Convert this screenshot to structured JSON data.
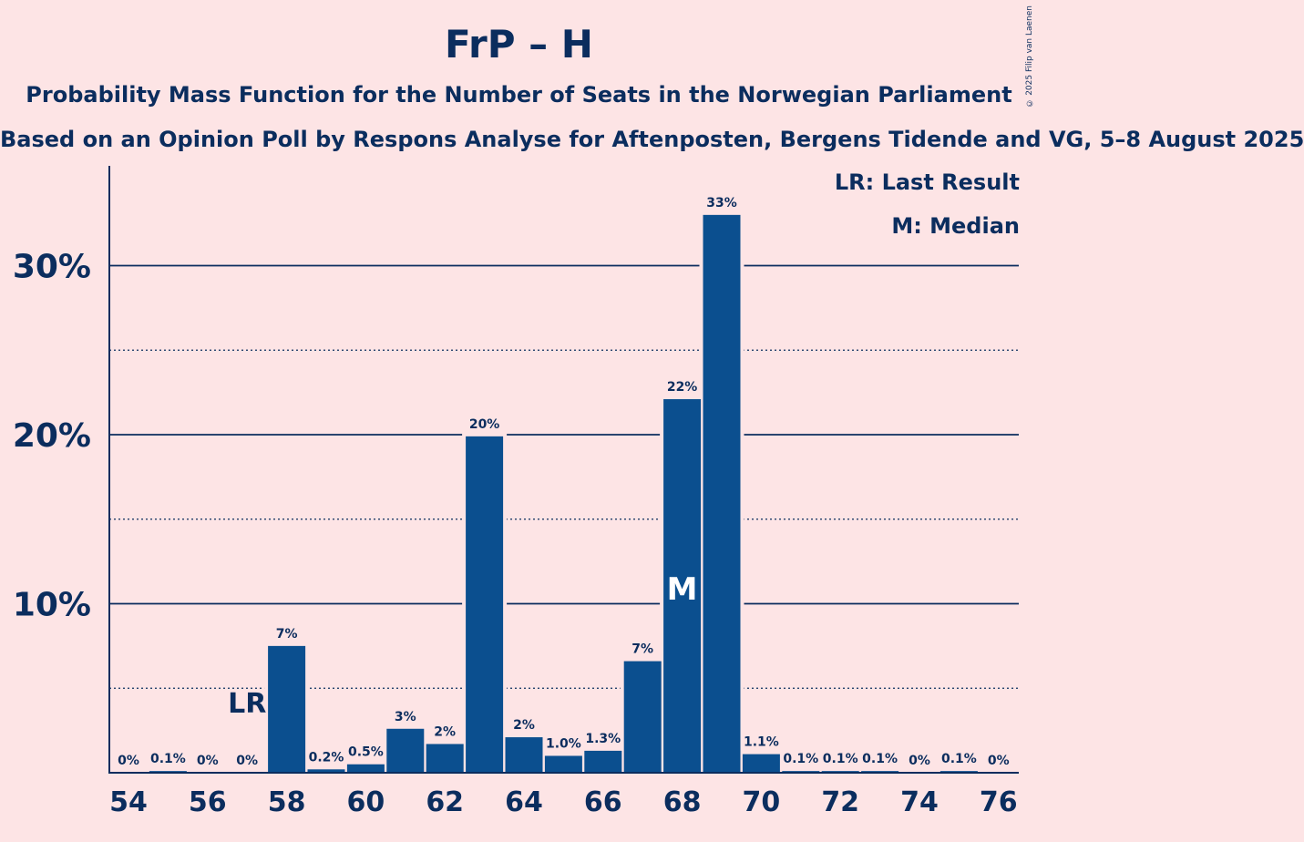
{
  "chart_data": {
    "type": "bar",
    "title": "FrP – H",
    "subtitle": "Probability Mass Function for the Number of Seats in the Norwegian Parliament",
    "subsubtitle": "Based on an Opinion Poll by Respons Analyse for Aftenposten, Bergens Tidende and VG, 5–8 August 2025",
    "copyright": "© 2025 Filip van Laenen",
    "legend": {
      "last_result": "LR: Last Result",
      "median": "M: Median"
    },
    "x": [
      54,
      55,
      56,
      57,
      58,
      59,
      60,
      61,
      62,
      63,
      64,
      65,
      66,
      67,
      68,
      69,
      70,
      71,
      72,
      73,
      74,
      75,
      76
    ],
    "values": [
      0,
      0.1,
      0,
      0,
      7.5,
      0.2,
      0.5,
      2.6,
      1.7,
      19.9,
      2.1,
      1.0,
      1.3,
      6.6,
      22.1,
      33.0,
      1.1,
      0.1,
      0.1,
      0.1,
      0,
      0.1,
      0
    ],
    "data_labels": [
      "0%",
      "0.1%",
      "0%",
      "0%",
      "7%",
      "0.2%",
      "0.5%",
      "3%",
      "2%",
      "20%",
      "2%",
      "1.0%",
      "1.3%",
      "7%",
      "22%",
      "33%",
      "1.1%",
      "0.1%",
      "0.1%",
      "0.1%",
      "0%",
      "0.1%",
      "0%"
    ],
    "x_tick_labels": [
      "54",
      "56",
      "58",
      "60",
      "62",
      "64",
      "66",
      "68",
      "70",
      "72",
      "74",
      "76"
    ],
    "y_tick_values": [
      10,
      20,
      30
    ],
    "y_tick_labels": [
      "10%",
      "20%",
      "30%"
    ],
    "y_minor_gridlines": [
      5,
      15,
      25
    ],
    "ylim": [
      0,
      36
    ],
    "last_result_seat": 57,
    "last_result_marker": "LR",
    "median_seat": 68,
    "median_marker": "M",
    "colors": {
      "bar": "#0b4f8f",
      "text": "#0b2d5e",
      "background": "#fde4e5",
      "marker_text": "#ffffff"
    }
  }
}
